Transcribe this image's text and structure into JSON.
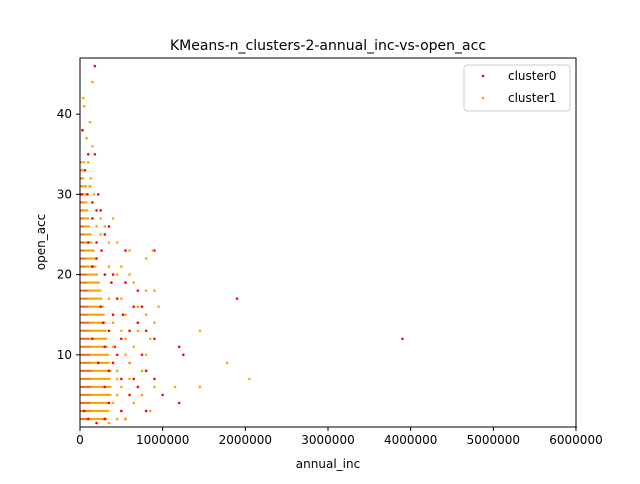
{
  "chart_data": {
    "type": "scatter",
    "title": "KMeans-n_clusters-2-annual_inc-vs-open_acc",
    "xlabel": "annual_inc",
    "ylabel": "open_acc",
    "xlim": [
      0,
      6000000
    ],
    "ylim": [
      1,
      47
    ],
    "xticks": [
      0,
      1000000,
      2000000,
      3000000,
      4000000,
      5000000,
      6000000
    ],
    "xtick_labels": [
      "0",
      "1000000",
      "2000000",
      "3000000",
      "4000000",
      "5000000",
      "6000000"
    ],
    "yticks": [
      10,
      20,
      30,
      40
    ],
    "ytick_labels": [
      "10",
      "20",
      "30",
      "40"
    ],
    "grid": false,
    "legend_position": "top-right",
    "series": [
      {
        "name": "cluster0",
        "color": "#ff0000",
        "points": [
          [
            180000,
            46
          ],
          [
            30000,
            38
          ],
          [
            100000,
            35
          ],
          [
            180000,
            35
          ],
          [
            60000,
            33
          ],
          [
            120000,
            31
          ],
          [
            90000,
            30
          ],
          [
            220000,
            30
          ],
          [
            150000,
            29
          ],
          [
            200000,
            28
          ],
          [
            250000,
            28
          ],
          [
            150000,
            27
          ],
          [
            350000,
            26
          ],
          [
            300000,
            25
          ],
          [
            100000,
            24
          ],
          [
            200000,
            24
          ],
          [
            550000,
            23
          ],
          [
            900000,
            23
          ],
          [
            200000,
            22
          ],
          [
            150000,
            21
          ],
          [
            300000,
            20
          ],
          [
            400000,
            20
          ],
          [
            550000,
            19
          ],
          [
            700000,
            18
          ],
          [
            450000,
            17
          ],
          [
            1900000,
            17
          ],
          [
            650000,
            16
          ],
          [
            750000,
            16
          ],
          [
            400000,
            15
          ],
          [
            700000,
            14
          ],
          [
            350000,
            13
          ],
          [
            600000,
            13
          ],
          [
            800000,
            13
          ],
          [
            500000,
            12
          ],
          [
            900000,
            12
          ],
          [
            3900000,
            12
          ],
          [
            300000,
            11
          ],
          [
            1200000,
            11
          ],
          [
            450000,
            10
          ],
          [
            750000,
            10
          ],
          [
            1250000,
            10
          ],
          [
            400000,
            9
          ],
          [
            600000,
            9
          ],
          [
            350000,
            8
          ],
          [
            800000,
            8
          ],
          [
            500000,
            7
          ],
          [
            900000,
            7
          ],
          [
            300000,
            6
          ],
          [
            700000,
            6
          ],
          [
            600000,
            5
          ],
          [
            1000000,
            5
          ],
          [
            350000,
            4
          ],
          [
            1200000,
            4
          ],
          [
            500000,
            3
          ],
          [
            800000,
            3
          ],
          [
            550000,
            2
          ],
          [
            300000,
            2
          ],
          [
            200000,
            1.5
          ],
          [
            100000,
            2
          ],
          [
            50000,
            3
          ],
          [
            20000,
            30
          ],
          [
            250000,
            16
          ],
          [
            280000,
            14
          ],
          [
            150000,
            12
          ],
          [
            220000,
            9
          ],
          [
            260000,
            23
          ],
          [
            380000,
            19
          ],
          [
            420000,
            11
          ],
          [
            650000,
            7
          ],
          [
            520000,
            15
          ]
        ]
      },
      {
        "name": "cluster1",
        "color": "#ffa500",
        "points": [
          [
            150000,
            44
          ],
          [
            40000,
            42
          ],
          [
            50000,
            41
          ],
          [
            120000,
            39
          ],
          [
            80000,
            37
          ],
          [
            150000,
            36
          ],
          [
            50000,
            34
          ],
          [
            100000,
            34
          ],
          [
            30000,
            33
          ],
          [
            130000,
            32
          ],
          [
            70000,
            31
          ],
          [
            170000,
            30
          ],
          [
            30000,
            28
          ],
          [
            250000,
            27
          ],
          [
            400000,
            27
          ],
          [
            200000,
            26
          ],
          [
            300000,
            26
          ],
          [
            250000,
            25
          ],
          [
            450000,
            24
          ],
          [
            350000,
            24
          ],
          [
            600000,
            23
          ],
          [
            880000,
            23
          ],
          [
            800000,
            22
          ],
          [
            500000,
            21
          ],
          [
            350000,
            21
          ],
          [
            600000,
            20
          ],
          [
            450000,
            20
          ],
          [
            650000,
            19
          ],
          [
            800000,
            18
          ],
          [
            900000,
            18
          ],
          [
            500000,
            17
          ],
          [
            350000,
            17
          ],
          [
            700000,
            16
          ],
          [
            950000,
            16
          ],
          [
            800000,
            15
          ],
          [
            550000,
            15
          ],
          [
            900000,
            14
          ],
          [
            400000,
            14
          ],
          [
            1450000,
            13
          ],
          [
            700000,
            13
          ],
          [
            500000,
            13
          ],
          [
            550000,
            12
          ],
          [
            850000,
            12
          ],
          [
            650000,
            11
          ],
          [
            400000,
            11
          ],
          [
            550000,
            10
          ],
          [
            800000,
            10
          ],
          [
            1780000,
            9
          ],
          [
            600000,
            9
          ],
          [
            750000,
            8
          ],
          [
            450000,
            8
          ],
          [
            2050000,
            7
          ],
          [
            600000,
            7
          ],
          [
            450000,
            7
          ],
          [
            900000,
            6
          ],
          [
            1150000,
            6
          ],
          [
            1450000,
            6
          ],
          [
            500000,
            6
          ],
          [
            750000,
            5
          ],
          [
            450000,
            5
          ],
          [
            400000,
            4
          ],
          [
            650000,
            4
          ],
          [
            850000,
            3
          ],
          [
            550000,
            2
          ],
          [
            450000,
            2
          ],
          [
            350000,
            1.5
          ],
          [
            6000000,
            1
          ],
          [
            120000,
            31
          ],
          [
            160000,
            23
          ],
          [
            90000,
            21
          ],
          [
            200000,
            19
          ]
        ]
      }
    ],
    "band_color": "#ffa500",
    "band_overlay_color": "#ff0000",
    "bands": [
      {
        "y": 2,
        "max": 330000
      },
      {
        "y": 3,
        "max": 350000
      },
      {
        "y": 4,
        "max": 360000
      },
      {
        "y": 5,
        "max": 380000
      },
      {
        "y": 6,
        "max": 380000
      },
      {
        "y": 7,
        "max": 370000
      },
      {
        "y": 8,
        "max": 380000
      },
      {
        "y": 9,
        "max": 360000
      },
      {
        "y": 10,
        "max": 350000
      },
      {
        "y": 11,
        "max": 340000
      },
      {
        "y": 12,
        "max": 330000
      },
      {
        "y": 13,
        "max": 320000
      },
      {
        "y": 14,
        "max": 310000
      },
      {
        "y": 15,
        "max": 300000
      },
      {
        "y": 16,
        "max": 290000
      },
      {
        "y": 17,
        "max": 270000
      },
      {
        "y": 18,
        "max": 260000
      },
      {
        "y": 19,
        "max": 240000
      },
      {
        "y": 20,
        "max": 220000
      },
      {
        "y": 21,
        "max": 200000
      },
      {
        "y": 22,
        "max": 190000
      },
      {
        "y": 23,
        "max": 170000
      },
      {
        "y": 24,
        "max": 150000
      },
      {
        "y": 25,
        "max": 140000
      },
      {
        "y": 26,
        "max": 120000
      },
      {
        "y": 27,
        "max": 110000
      },
      {
        "y": 28,
        "max": 100000
      },
      {
        "y": 29,
        "max": 90000
      },
      {
        "y": 30,
        "max": 80000
      },
      {
        "y": 31,
        "max": 60000
      },
      {
        "y": 32,
        "max": 50000
      },
      {
        "y": 33,
        "max": 40000
      },
      {
        "y": 34,
        "max": 30000
      }
    ]
  }
}
